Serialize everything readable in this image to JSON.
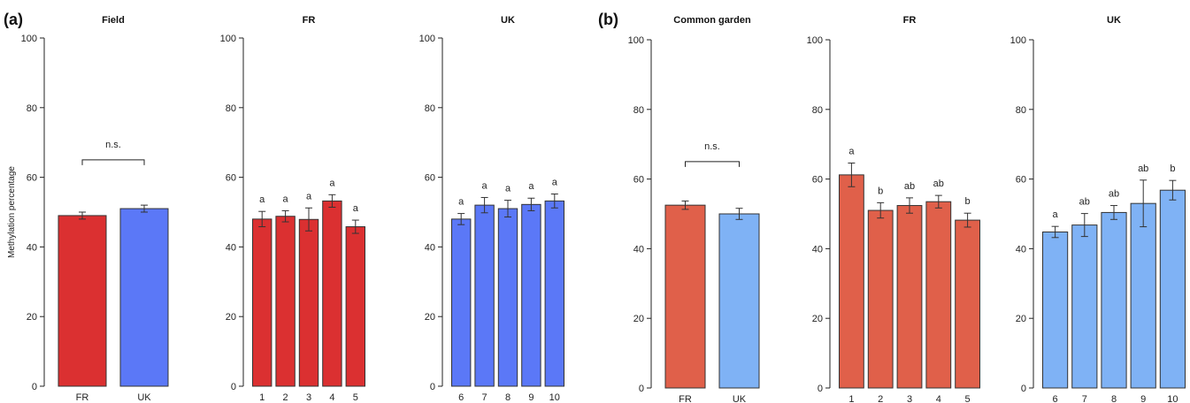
{
  "panel_labels": [
    "(a)",
    "(b)"
  ],
  "y_axis_label": "Methylation percentage",
  "colors": {
    "field_fr": "#db3031",
    "field_uk": "#5b78f7",
    "garden_fr": "#e0604a",
    "garden_uk": "#7fb2f5"
  },
  "chart_data": [
    {
      "type": "bar",
      "panel": "(a)",
      "title": "Field",
      "ylabel": "Methylation percentage",
      "ylim": [
        0,
        100
      ],
      "yticks": [
        0,
        20,
        40,
        60,
        80,
        100
      ],
      "categories": [
        "FR",
        "UK"
      ],
      "values": [
        49,
        51
      ],
      "errors": [
        1,
        1
      ],
      "colors": [
        "#db3031",
        "#5b78f7"
      ],
      "significance": {
        "label": "n.s.",
        "between": [
          "FR",
          "UK"
        ],
        "y": 65
      }
    },
    {
      "type": "bar",
      "panel": "(a)",
      "title": "FR",
      "ylim": [
        0,
        100
      ],
      "yticks": [
        0,
        20,
        40,
        60,
        80,
        100
      ],
      "categories": [
        "1",
        "2",
        "3",
        "4",
        "5"
      ],
      "values": [
        48,
        48.8,
        47.9,
        53.2,
        45.8
      ],
      "errors": [
        2.2,
        1.6,
        3.3,
        1.8,
        1.9
      ],
      "letters": [
        "a",
        "a",
        "a",
        "a",
        "a"
      ],
      "color": "#db3031"
    },
    {
      "type": "bar",
      "panel": "(a)",
      "title": "UK",
      "ylim": [
        0,
        100
      ],
      "yticks": [
        0,
        20,
        40,
        60,
        80,
        100
      ],
      "categories": [
        "6",
        "7",
        "8",
        "9",
        "10"
      ],
      "values": [
        48,
        52,
        51,
        52.2,
        53.2
      ],
      "errors": [
        1.6,
        2.2,
        2.4,
        1.8,
        2
      ],
      "letters": [
        "a",
        "a",
        "a",
        "a",
        "a"
      ],
      "color": "#5b78f7"
    },
    {
      "type": "bar",
      "panel": "(b)",
      "title": "Common garden",
      "ylim": [
        0,
        100
      ],
      "yticks": [
        0,
        20,
        40,
        60,
        80,
        100
      ],
      "categories": [
        "FR",
        "UK"
      ],
      "values": [
        52.5,
        50
      ],
      "errors": [
        1.2,
        1.6
      ],
      "colors": [
        "#e0604a",
        "#7fb2f5"
      ],
      "significance": {
        "label": "n.s.",
        "between": [
          "FR",
          "UK"
        ],
        "y": 65
      }
    },
    {
      "type": "bar",
      "panel": "(b)",
      "title": "FR",
      "ylim": [
        0,
        100
      ],
      "yticks": [
        0,
        20,
        40,
        60,
        80,
        100
      ],
      "categories": [
        "1",
        "2",
        "3",
        "4",
        "5"
      ],
      "values": [
        61.2,
        51,
        52.4,
        53.5,
        48.2
      ],
      "errors": [
        3.4,
        2.2,
        2.2,
        1.8,
        2
      ],
      "letters": [
        "a",
        "b",
        "ab",
        "ab",
        "b"
      ],
      "color": "#e0604a"
    },
    {
      "type": "bar",
      "panel": "(b)",
      "title": "UK",
      "ylim": [
        0,
        100
      ],
      "yticks": [
        0,
        20,
        40,
        60,
        80,
        100
      ],
      "categories": [
        "6",
        "7",
        "8",
        "9",
        "10"
      ],
      "values": [
        44.8,
        46.8,
        50.4,
        53,
        56.8
      ],
      "errors": [
        1.6,
        3.3,
        2,
        6.7,
        2.8
      ],
      "letters": [
        "a",
        "ab",
        "ab",
        "ab",
        "b"
      ],
      "color": "#7fb2f5"
    }
  ]
}
